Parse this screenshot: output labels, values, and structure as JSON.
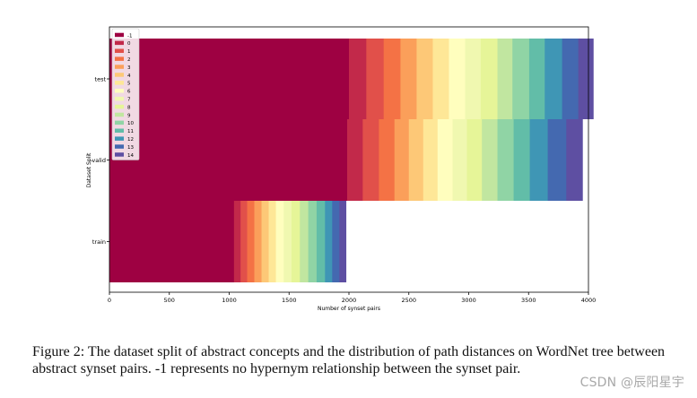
{
  "chart_data": {
    "type": "bar",
    "orientation": "horizontal-stacked",
    "title": "",
    "xlabel": "Number of synset pairs",
    "ylabel": "Dataset Split",
    "xlim": [
      0,
      4000
    ],
    "xticks": [
      0,
      500,
      1000,
      1500,
      2000,
      2500,
      3000,
      3500,
      4000
    ],
    "categories": [
      "test",
      "valid",
      "train"
    ],
    "series": [
      {
        "name": "-1",
        "color": "#9e0142",
        "values": [
          2000,
          1985,
          1040
        ]
      },
      {
        "name": "0",
        "color": "#c2294a",
        "values": [
          145,
          130,
          55
        ]
      },
      {
        "name": "1",
        "color": "#e1504a",
        "values": [
          145,
          135,
          55
        ]
      },
      {
        "name": "2",
        "color": "#f47245",
        "values": [
          140,
          130,
          60
        ]
      },
      {
        "name": "3",
        "color": "#fb9f5a",
        "values": [
          135,
          120,
          60
        ]
      },
      {
        "name": "4",
        "color": "#fdc877",
        "values": [
          135,
          120,
          60
        ]
      },
      {
        "name": "5",
        "color": "#fee797",
        "values": [
          135,
          120,
          60
        ]
      },
      {
        "name": "6",
        "color": "#fffebe",
        "values": [
          135,
          125,
          65
        ]
      },
      {
        "name": "7",
        "color": "#f0f8b0",
        "values": [
          130,
          120,
          65
        ]
      },
      {
        "name": "8",
        "color": "#e6f598",
        "values": [
          140,
          125,
          70
        ]
      },
      {
        "name": "9",
        "color": "#c1e6a0",
        "values": [
          125,
          130,
          70
        ]
      },
      {
        "name": "10",
        "color": "#90d4a5",
        "values": [
          140,
          135,
          70
        ]
      },
      {
        "name": "11",
        "color": "#62bda8",
        "values": [
          130,
          135,
          70
        ]
      },
      {
        "name": "12",
        "color": "#3f96b5",
        "values": [
          145,
          150,
          60
        ]
      },
      {
        "name": "13",
        "color": "#4469b0",
        "values": [
          135,
          155,
          60
        ]
      },
      {
        "name": "14",
        "color": "#5e4fa2",
        "values": [
          125,
          135,
          55
        ]
      }
    ],
    "legend": "top-left"
  },
  "caption": "Figure 2: The dataset split of abstract concepts and the distribution of path distances on WordNet tree between abstract synset pairs. -1 represents no hypernym relationship between the synset pair.",
  "watermark": "CSDN @辰阳星宇"
}
